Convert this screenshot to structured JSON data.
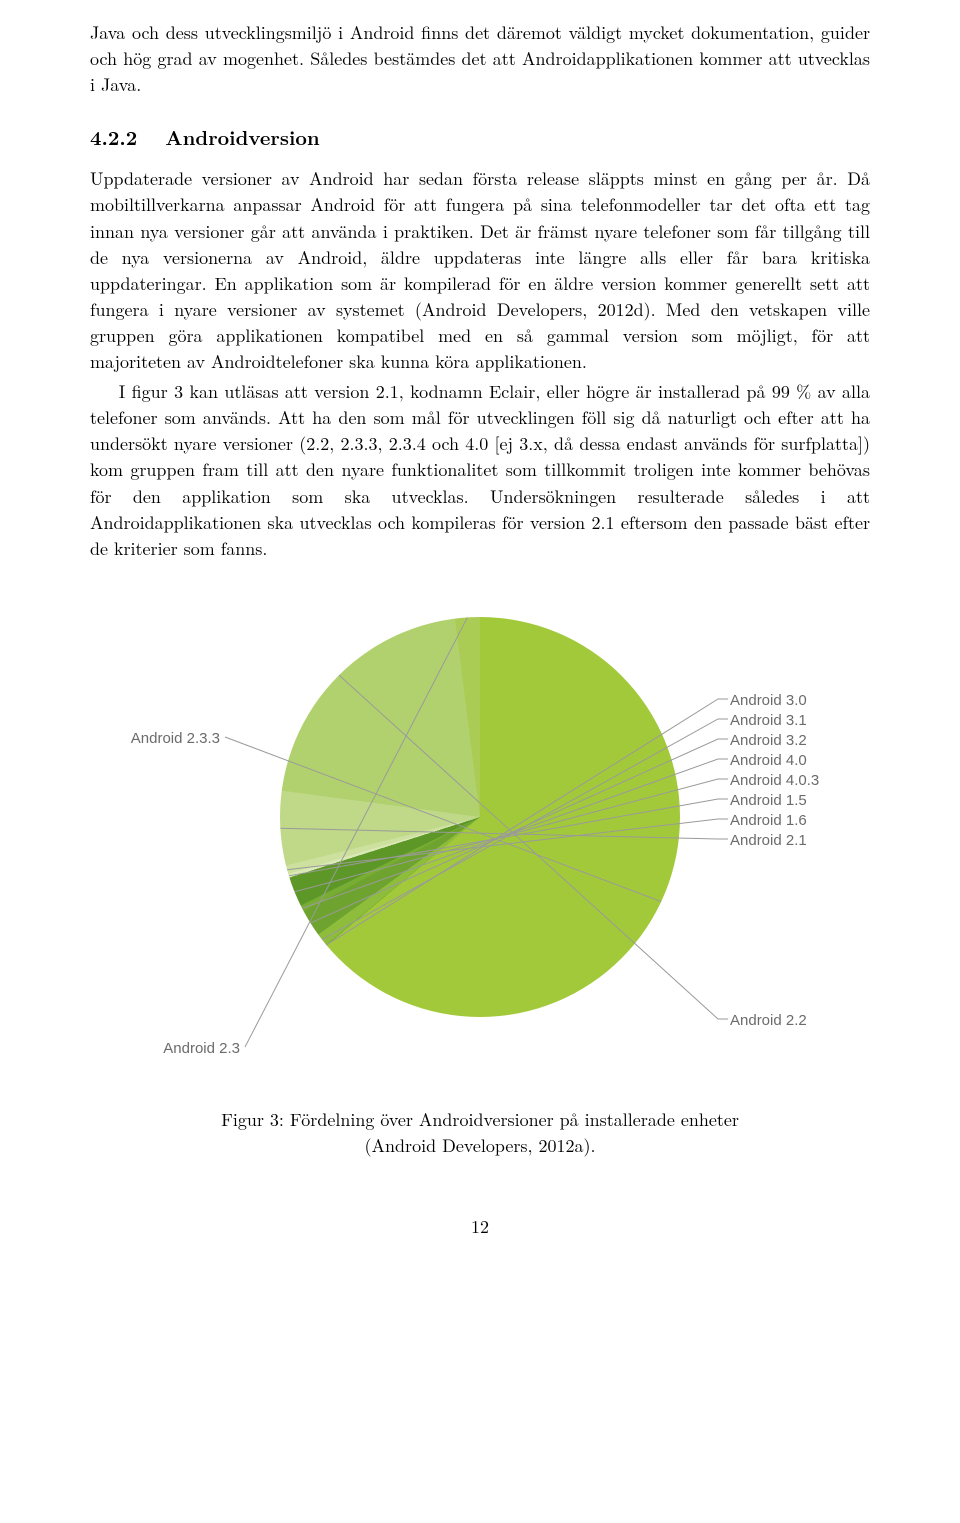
{
  "paragraph1": "Java och dess utvecklingsmiljö i Android finns det däremot väldigt mycket dokumentation, guider och hög grad av mogenhet. Således bestämdes det att Androidapplikationen kommer att utvecklas i Java.",
  "section": {
    "number": "4.2.2",
    "title": "Androidversion"
  },
  "paragraph2": "Uppdaterade versioner av Android har sedan första release släppts minst en gång per år. Då mobiltillverkarna anpassar Android för att fungera på sina telefonmodeller tar det ofta ett tag innan nya versioner går att använda i praktiken. Det är främst nyare telefoner som får tillgång till de nya versionerna av Android, äldre uppdateras inte längre alls eller får bara kritiska uppdateringar. En applikation som är kompilerad för en äldre version kommer generellt sett att fungera i nyare versioner av systemet (Android Developers, 2012d). Med den vetskapen ville gruppen göra applikationen kompatibel med en så gammal version som möjligt, för att majoriteten av Androidtelefoner ska kunna köra applikationen.",
  "paragraph3": "I figur 3 kan utläsas att version 2.1, kodnamn Eclair, eller högre är installerad på 99 % av alla telefoner som används. Att ha den som mål för utvecklingen föll sig då naturligt och efter att ha undersökt nyare versioner (2.2, 2.3.3, 2.3.4 och 4.0 [ej 3.x, då dessa endast används för surfplatta]) kom gruppen fram till att den nyare funktionalitet som tillkommit troligen inte kommer behövas för den applikation som ska utvecklas. Undersökningen resulterade således i att Androidapplikationen ska utvecklas och kompileras för version 2.1 eftersom den passade bäst efter de kriterier som fanns.",
  "chart": {
    "type": "pie",
    "background_color": "#ffffff",
    "label_color": "#6b6b6b",
    "label_fontfamily": "Arial",
    "label_fontsize": 15,
    "leader_color": "#9a9a9a",
    "slices": [
      {
        "label": "Android 2.3.3",
        "value": 63.9,
        "color": "#a2c93a"
      },
      {
        "label": "Android 3.0",
        "value": 0.1,
        "color": "#7cb234"
      },
      {
        "label": "Android 3.1",
        "value": 1.0,
        "color": "#8dbd3a"
      },
      {
        "label": "Android 3.2",
        "value": 2.2,
        "color": "#6ea32f"
      },
      {
        "label": "Android 4.0",
        "value": 0.5,
        "color": "#78ad33"
      },
      {
        "label": "Android 4.0.3",
        "value": 2.4,
        "color": "#5d9727"
      },
      {
        "label": "Android 1.5",
        "value": 0.3,
        "color": "#dbe8b8"
      },
      {
        "label": "Android 1.6",
        "value": 0.7,
        "color": "#cde09e"
      },
      {
        "label": "Android 2.1",
        "value": 6.0,
        "color": "#bfd988"
      },
      {
        "label": "Android 2.2",
        "value": 20.9,
        "color": "#b1d16e"
      },
      {
        "label": "Android 2.3",
        "value": 2.0,
        "color": "#aacc54"
      }
    ]
  },
  "caption_line1": "Figur 3: Fördelning över Androidversioner på installerade enheter",
  "caption_line2": "(Android Developers, 2012a).",
  "page_number": "12"
}
